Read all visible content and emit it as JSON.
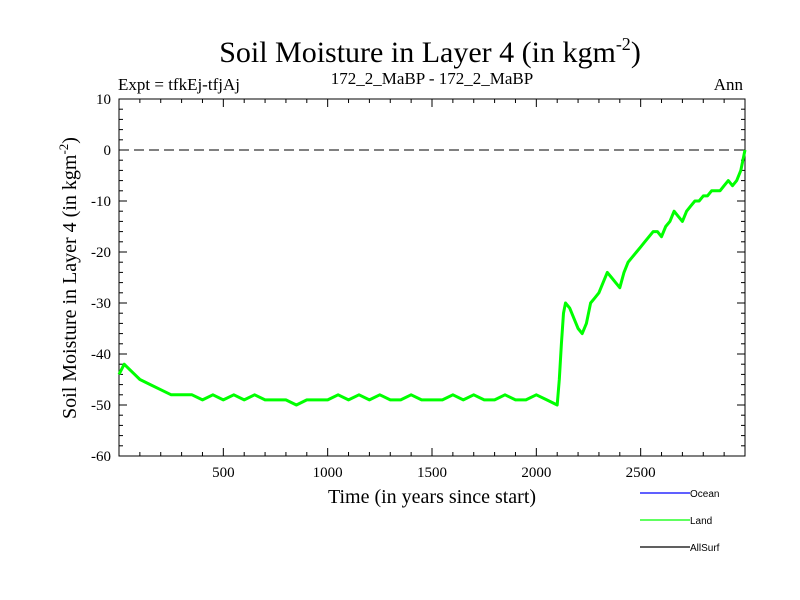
{
  "chart_data": {
    "type": "line",
    "title": "Soil Moisture in Layer 4 (in kgm",
    "title_sup": "-2",
    "title_close": ")",
    "subtitle_left": "Expt = tfkEj-tfjAj",
    "subtitle_center": "172_2_MaBP - 172_2_MaBP",
    "subtitle_right": "Ann",
    "xlabel": "Time (in years since start)",
    "ylabel": "Soil Moisture in Layer 4 (in kgm",
    "ylabel_sup": "-2",
    "ylabel_close": ")",
    "xlim": [
      0,
      3000
    ],
    "ylim": [
      -60,
      10
    ],
    "x_ticks": [
      {
        "value": 500,
        "label": "500"
      },
      {
        "value": 1000,
        "label": "1000"
      },
      {
        "value": 1500,
        "label": "1500"
      },
      {
        "value": 2000,
        "label": "2000"
      },
      {
        "value": 2500,
        "label": "2500"
      }
    ],
    "y_ticks": [
      {
        "value": 10,
        "label": "10"
      },
      {
        "value": 0,
        "label": "0"
      },
      {
        "value": -10,
        "label": "-10"
      },
      {
        "value": -20,
        "label": "-20"
      },
      {
        "value": -30,
        "label": "-30"
      },
      {
        "value": -40,
        "label": "-40"
      },
      {
        "value": -50,
        "label": "-50"
      },
      {
        "value": -60,
        "label": "-60"
      }
    ],
    "reference_line": {
      "y": 0,
      "style": "dashed"
    },
    "legend_position": "bottom-right",
    "series": [
      {
        "name": "Ocean",
        "color": "#0000ff",
        "x": [],
        "y": []
      },
      {
        "name": "Land",
        "color": "#00ff00",
        "x": [
          0,
          25,
          50,
          75,
          100,
          150,
          200,
          250,
          300,
          350,
          400,
          450,
          500,
          550,
          600,
          650,
          700,
          750,
          800,
          850,
          900,
          950,
          1000,
          1050,
          1100,
          1150,
          1200,
          1250,
          1300,
          1350,
          1400,
          1450,
          1500,
          1550,
          1600,
          1650,
          1700,
          1750,
          1800,
          1850,
          1900,
          1950,
          2000,
          2050,
          2100,
          2110,
          2120,
          2130,
          2140,
          2160,
          2180,
          2200,
          2220,
          2240,
          2260,
          2280,
          2300,
          2320,
          2340,
          2360,
          2380,
          2400,
          2420,
          2440,
          2460,
          2480,
          2500,
          2520,
          2540,
          2560,
          2580,
          2600,
          2620,
          2640,
          2660,
          2680,
          2700,
          2720,
          2740,
          2760,
          2780,
          2800,
          2820,
          2840,
          2860,
          2880,
          2900,
          2920,
          2940,
          2960,
          2980,
          3000
        ],
        "y": [
          -44,
          -42,
          -43,
          -44,
          -45,
          -46,
          -47,
          -48,
          -48,
          -48,
          -49,
          -48,
          -49,
          -48,
          -49,
          -48,
          -49,
          -49,
          -49,
          -50,
          -49,
          -49,
          -49,
          -48,
          -49,
          -48,
          -49,
          -48,
          -49,
          -49,
          -48,
          -49,
          -49,
          -49,
          -48,
          -49,
          -48,
          -49,
          -49,
          -48,
          -49,
          -49,
          -48,
          -49,
          -50,
          -45,
          -38,
          -32,
          -30,
          -31,
          -33,
          -35,
          -36,
          -34,
          -30,
          -29,
          -28,
          -26,
          -24,
          -25,
          -26,
          -27,
          -24,
          -22,
          -21,
          -20,
          -19,
          -18,
          -17,
          -16,
          -16,
          -17,
          -15,
          -14,
          -12,
          -13,
          -14,
          -12,
          -11,
          -10,
          -10,
          -9,
          -9,
          -8,
          -8,
          -8,
          -7,
          -6,
          -7,
          -6,
          -4,
          0
        ]
      },
      {
        "name": "AllSurf",
        "color": "#000000",
        "x": [],
        "y": []
      }
    ]
  }
}
